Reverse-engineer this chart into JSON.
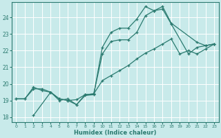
{
  "title": "",
  "xlabel": "Humidex (Indice chaleur)",
  "ylabel": "",
  "bg_color": "#c8eaea",
  "line_color": "#2a7a6f",
  "grid_color": "#ffffff",
  "xlim": [
    -0.5,
    23.5
  ],
  "ylim": [
    17.7,
    24.9
  ],
  "xticks": [
    0,
    1,
    2,
    3,
    4,
    5,
    6,
    7,
    8,
    9,
    10,
    11,
    12,
    13,
    14,
    15,
    16,
    17,
    18,
    19,
    20,
    21,
    22,
    23
  ],
  "yticks": [
    18,
    19,
    20,
    21,
    22,
    23,
    24
  ],
  "line1_x": [
    0,
    1,
    2,
    3,
    4,
    5,
    6,
    7,
    8,
    9,
    10,
    11,
    12,
    13,
    14,
    15,
    16,
    17,
    18,
    21,
    22,
    23
  ],
  "line1_y": [
    19.1,
    19.1,
    19.7,
    19.7,
    19.5,
    19.0,
    19.1,
    18.75,
    19.3,
    19.35,
    22.2,
    23.1,
    23.35,
    23.35,
    23.9,
    24.65,
    24.4,
    24.65,
    23.65,
    22.5,
    22.3,
    22.4
  ],
  "line2_x": [
    0,
    1,
    2,
    3,
    4,
    5,
    6,
    7,
    8,
    9,
    10,
    11,
    12,
    13,
    14,
    15,
    16,
    17,
    18,
    19,
    20,
    21,
    22,
    23
  ],
  "line2_y": [
    19.1,
    19.1,
    19.8,
    19.6,
    19.5,
    19.1,
    19.0,
    19.05,
    19.35,
    19.4,
    20.2,
    20.5,
    20.8,
    21.1,
    21.5,
    21.85,
    22.1,
    22.4,
    22.7,
    21.8,
    22.0,
    21.8,
    22.1,
    22.4
  ],
  "line3_x": [
    2,
    4,
    5,
    6,
    7,
    8,
    9,
    10,
    11,
    12,
    13,
    14,
    15,
    16,
    17,
    18,
    20,
    21,
    22,
    23
  ],
  "line3_y": [
    18.1,
    19.5,
    19.1,
    19.0,
    18.75,
    19.35,
    19.4,
    21.8,
    22.55,
    22.65,
    22.65,
    23.1,
    24.1,
    24.4,
    24.5,
    23.6,
    21.8,
    22.2,
    22.3,
    22.4
  ],
  "marker": "+",
  "markersize": 3,
  "linewidth": 0.9
}
